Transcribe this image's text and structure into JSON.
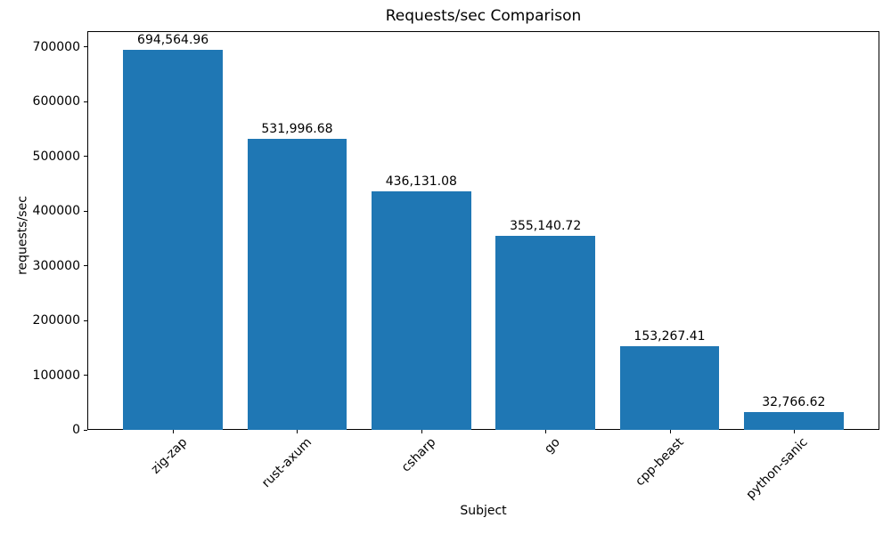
{
  "chart_data": {
    "type": "bar",
    "title": "Requests/sec Comparison",
    "xlabel": "Subject",
    "ylabel": "requests/sec",
    "categories": [
      "zig-zap",
      "rust-axum",
      "csharp",
      "go",
      "cpp-beast",
      "python-sanic"
    ],
    "values": [
      694564.96,
      531996.68,
      436131.08,
      355140.72,
      153267.41,
      32766.62
    ],
    "bar_labels": [
      "694,564.96",
      "531,996.68",
      "436,131.08",
      "355,140.72",
      "153,267.41",
      "32,766.62"
    ],
    "bar_color": "#1f77b4",
    "text_color": "#000000",
    "ylim": [
      0,
      729293
    ],
    "xlim": [
      -0.69,
      5.69
    ],
    "bar_width": 0.8,
    "ytick_values": [
      0,
      100000,
      200000,
      300000,
      400000,
      500000,
      600000,
      700000
    ],
    "ytick_labels": [
      "0",
      "100000",
      "200000",
      "300000",
      "400000",
      "500000",
      "600000",
      "700000"
    ],
    "xtick_rotation_deg": 45,
    "grid": false,
    "legend": null
  }
}
